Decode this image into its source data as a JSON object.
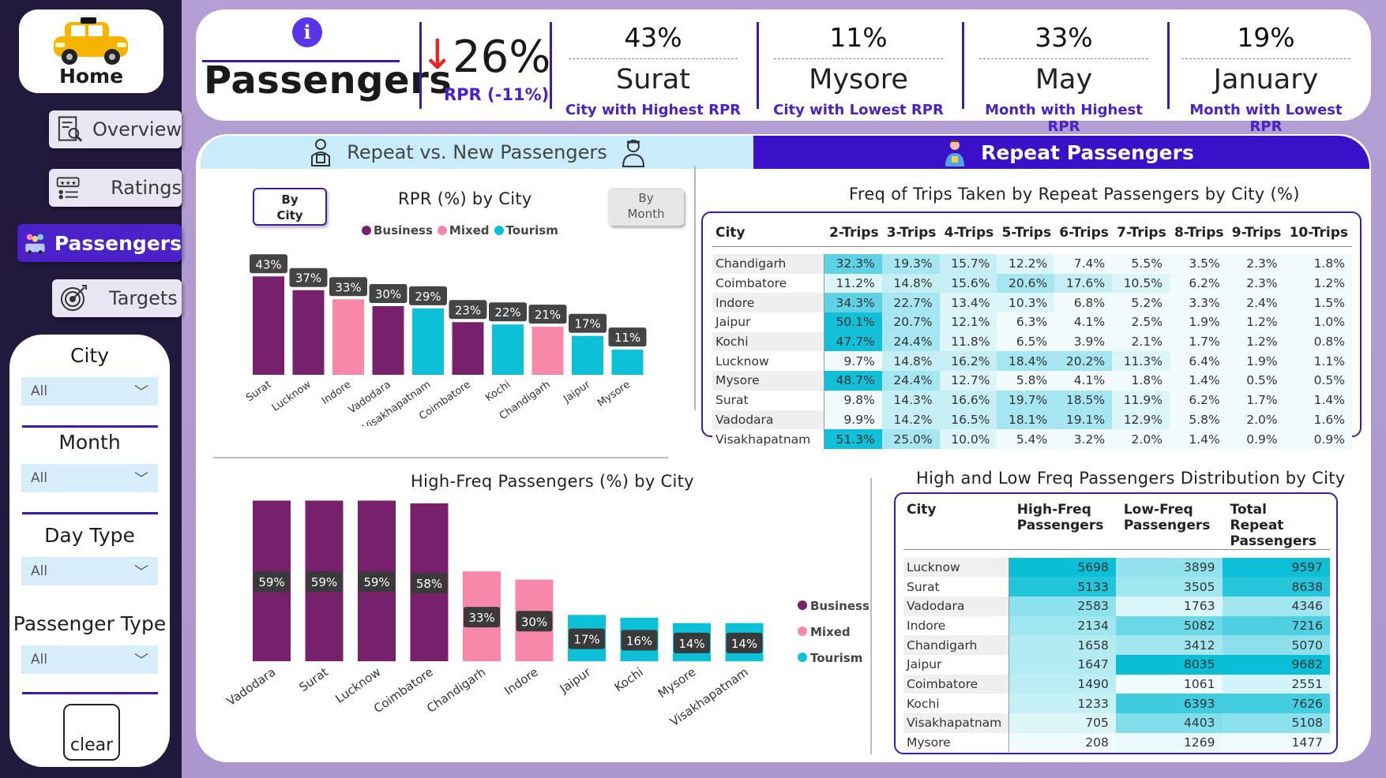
{
  "sidebar": {
    "home": "Home",
    "nav": [
      {
        "label": "Overview",
        "icon": "overview-icon"
      },
      {
        "label": "Ratings",
        "icon": "ratings-icon"
      },
      {
        "label": "Passengers",
        "icon": "passengers-icon",
        "active": true
      },
      {
        "label": "Targets",
        "icon": "target-icon"
      }
    ],
    "filters": [
      {
        "label": "City",
        "value": "All"
      },
      {
        "label": "Month",
        "value": "All"
      },
      {
        "label": "Day Type",
        "value": "All"
      },
      {
        "label": "Passenger Type",
        "value": "All"
      }
    ],
    "clear": "clear"
  },
  "header": {
    "title": "Passengers",
    "rpr_value": "26%",
    "rpr_sub": "RPR (-11%)",
    "kpis": [
      {
        "pct": "43%",
        "name": "Surat",
        "sub": "City with Highest RPR"
      },
      {
        "pct": "11%",
        "name": "Mysore",
        "sub": "City with Lowest RPR"
      },
      {
        "pct": "33%",
        "name": "May",
        "sub": "Month with Highest RPR"
      },
      {
        "pct": "19%",
        "name": "January",
        "sub": "Month with Lowest RPR"
      }
    ]
  },
  "tabs": {
    "tab1": "Repeat vs. New Passengers",
    "tab2": "Repeat Passengers"
  },
  "rpr_chart": {
    "toggle_city": "By City",
    "toggle_month": "By Month"
  },
  "legend": {
    "business": "Business",
    "mixed": "Mixed",
    "tourism": "Tourism"
  },
  "colors": {
    "business": "#77206b",
    "mixed": "#f888aa",
    "tourism": "#0cc0d8",
    "accent": "#3b1ca8"
  },
  "chart_data": [
    {
      "type": "bar",
      "title": "RPR (%) by City",
      "categories": [
        "Surat",
        "Lucknow",
        "Indore",
        "Vadodara",
        "Visakhapatnam",
        "Coimbatore",
        "Kochi",
        "Chandigarh",
        "Jaipur",
        "Mysore"
      ],
      "values": [
        43,
        37,
        33,
        30,
        29,
        23,
        22,
        21,
        17,
        11
      ],
      "labels": [
        "43%",
        "37%",
        "33%",
        "30%",
        "29%",
        "23%",
        "22%",
        "21%",
        "17%",
        "11%"
      ],
      "segment": [
        "Business",
        "Business",
        "Mixed",
        "Business",
        "Tourism",
        "Business",
        "Tourism",
        "Mixed",
        "Tourism",
        "Tourism"
      ],
      "legend": [
        "Business",
        "Mixed",
        "Tourism"
      ]
    },
    {
      "type": "bar",
      "title": "High-Freq Passengers (%) by City",
      "categories": [
        "Vadodara",
        "Surat",
        "Lucknow",
        "Coimbatore",
        "Chandigarh",
        "Indore",
        "Jaipur",
        "Kochi",
        "Mysore",
        "Visakhapatnam"
      ],
      "values": [
        59,
        59,
        59,
        58,
        33,
        30,
        17,
        16,
        14,
        14
      ],
      "labels": [
        "59%",
        "59%",
        "59%",
        "58%",
        "33%",
        "30%",
        "17%",
        "16%",
        "14%",
        "14%"
      ],
      "segment": [
        "Business",
        "Business",
        "Business",
        "Business",
        "Mixed",
        "Mixed",
        "Tourism",
        "Tourism",
        "Tourism",
        "Tourism"
      ],
      "legend": [
        "Business",
        "Mixed",
        "Tourism"
      ]
    },
    {
      "type": "table",
      "title": "Freq of Trips Taken by Repeat Passengers by City (%)",
      "columns": [
        "City",
        "2-Trips",
        "3-Trips",
        "4-Trips",
        "5-Trips",
        "6-Trips",
        "7-Trips",
        "8-Trips",
        "9-Trips",
        "10-Trips"
      ],
      "rows": [
        [
          "Chandigarh",
          32.3,
          19.3,
          15.7,
          12.2,
          7.4,
          5.5,
          3.5,
          2.3,
          1.8
        ],
        [
          "Coimbatore",
          11.2,
          14.8,
          15.6,
          20.6,
          17.6,
          10.5,
          6.2,
          2.3,
          1.2
        ],
        [
          "Indore",
          34.3,
          22.7,
          13.4,
          10.3,
          6.8,
          5.2,
          3.3,
          2.4,
          1.5
        ],
        [
          "Jaipur",
          50.1,
          20.7,
          12.1,
          6.3,
          4.1,
          2.5,
          1.9,
          1.2,
          1.0
        ],
        [
          "Kochi",
          47.7,
          24.4,
          11.8,
          6.5,
          3.9,
          2.1,
          1.7,
          1.2,
          0.8
        ],
        [
          "Lucknow",
          9.7,
          14.8,
          16.2,
          18.4,
          20.2,
          11.3,
          6.4,
          1.9,
          1.1
        ],
        [
          "Mysore",
          48.7,
          24.4,
          12.7,
          5.8,
          4.1,
          1.8,
          1.4,
          0.5,
          0.5
        ],
        [
          "Surat",
          9.8,
          14.3,
          16.6,
          19.7,
          18.5,
          11.9,
          6.2,
          1.7,
          1.4
        ],
        [
          "Vadodara",
          9.9,
          14.2,
          16.5,
          18.1,
          19.1,
          12.9,
          5.8,
          2.0,
          1.6
        ],
        [
          "Visakhapatnam",
          51.3,
          25.0,
          10.0,
          5.4,
          3.2,
          2.0,
          1.4,
          0.9,
          0.9
        ]
      ]
    },
    {
      "type": "table",
      "title": "High and Low Freq Passengers Distribution by City",
      "columns": [
        "City",
        "High-Freq Passengers",
        "Low-Freq Passengers",
        "Total Repeat Passengers"
      ],
      "rows": [
        [
          "Lucknow",
          5698,
          3899,
          9597
        ],
        [
          "Surat",
          5133,
          3505,
          8638
        ],
        [
          "Vadodara",
          2583,
          1763,
          4346
        ],
        [
          "Indore",
          2134,
          5082,
          7216
        ],
        [
          "Chandigarh",
          1658,
          3412,
          5070
        ],
        [
          "Jaipur",
          1647,
          8035,
          9682
        ],
        [
          "Coimbatore",
          1490,
          1061,
          2551
        ],
        [
          "Kochi",
          1233,
          6393,
          7626
        ],
        [
          "Visakhapatnam",
          705,
          4403,
          5108
        ],
        [
          "Mysore",
          208,
          1269,
          1477
        ]
      ]
    }
  ]
}
